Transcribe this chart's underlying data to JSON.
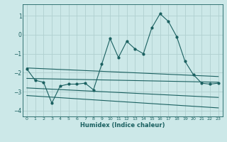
{
  "xlabel": "Humidex (Indice chaleur)",
  "background_color": "#cce8e8",
  "grid_color": "#b0d0d0",
  "line_color": "#1a6060",
  "xlim": [
    -0.5,
    23.5
  ],
  "ylim": [
    -4.3,
    1.6
  ],
  "yticks": [
    -4,
    -3,
    -2,
    -1,
    0,
    1
  ],
  "xticks": [
    0,
    1,
    2,
    3,
    4,
    5,
    6,
    7,
    8,
    9,
    10,
    11,
    12,
    13,
    14,
    15,
    16,
    17,
    18,
    19,
    20,
    21,
    22,
    23
  ],
  "main_x": [
    0,
    1,
    2,
    3,
    4,
    5,
    6,
    7,
    8,
    9,
    10,
    11,
    12,
    13,
    14,
    15,
    16,
    17,
    18,
    19,
    20,
    21,
    22,
    23
  ],
  "main_y": [
    -1.8,
    -2.4,
    -2.5,
    -3.6,
    -2.7,
    -2.6,
    -2.6,
    -2.55,
    -2.9,
    -1.55,
    -0.2,
    -1.2,
    -0.35,
    -0.75,
    -1.0,
    0.35,
    1.1,
    0.7,
    -0.1,
    -1.4,
    -2.1,
    -2.55,
    -2.6,
    -2.55
  ],
  "upper_line_x": [
    0,
    23
  ],
  "upper_line_y": [
    -1.75,
    -2.2
  ],
  "mid_line_x": [
    0,
    23
  ],
  "mid_line_y": [
    -2.3,
    -2.5
  ],
  "lower_line_x": [
    0,
    23
  ],
  "lower_line_y": [
    -2.8,
    -3.3
  ],
  "bottom_line_x": [
    0,
    23
  ],
  "bottom_line_y": [
    -3.2,
    -3.85
  ]
}
